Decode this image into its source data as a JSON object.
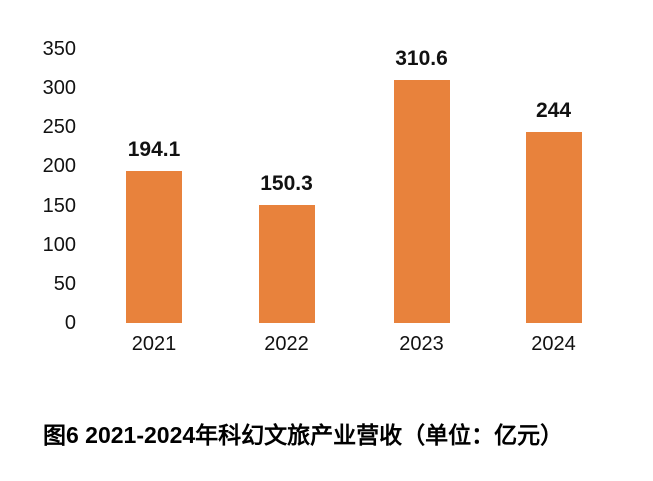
{
  "colors": {
    "bar": "#E8823C",
    "text": "#111111",
    "background": "#ffffff"
  },
  "chart_data": {
    "type": "bar",
    "title": "图6 2021-2024年科幻文旅产业营收（单位：亿元）",
    "categories": [
      "2021",
      "2022",
      "2023",
      "2024"
    ],
    "values": [
      194.1,
      150.3,
      310.6,
      244
    ],
    "value_labels": [
      "194.1",
      "150.3",
      "310.6",
      "244"
    ],
    "y_ticks": [
      0,
      50,
      100,
      150,
      200,
      250,
      300,
      350
    ],
    "ylim": [
      0,
      350
    ],
    "xlabel": "",
    "ylabel": "",
    "unit": "亿元",
    "grid": false,
    "legend": "none",
    "bar_color": "#E8823C"
  },
  "caption": "图6 2021-2024年科幻文旅产业营收（单位：亿元）"
}
